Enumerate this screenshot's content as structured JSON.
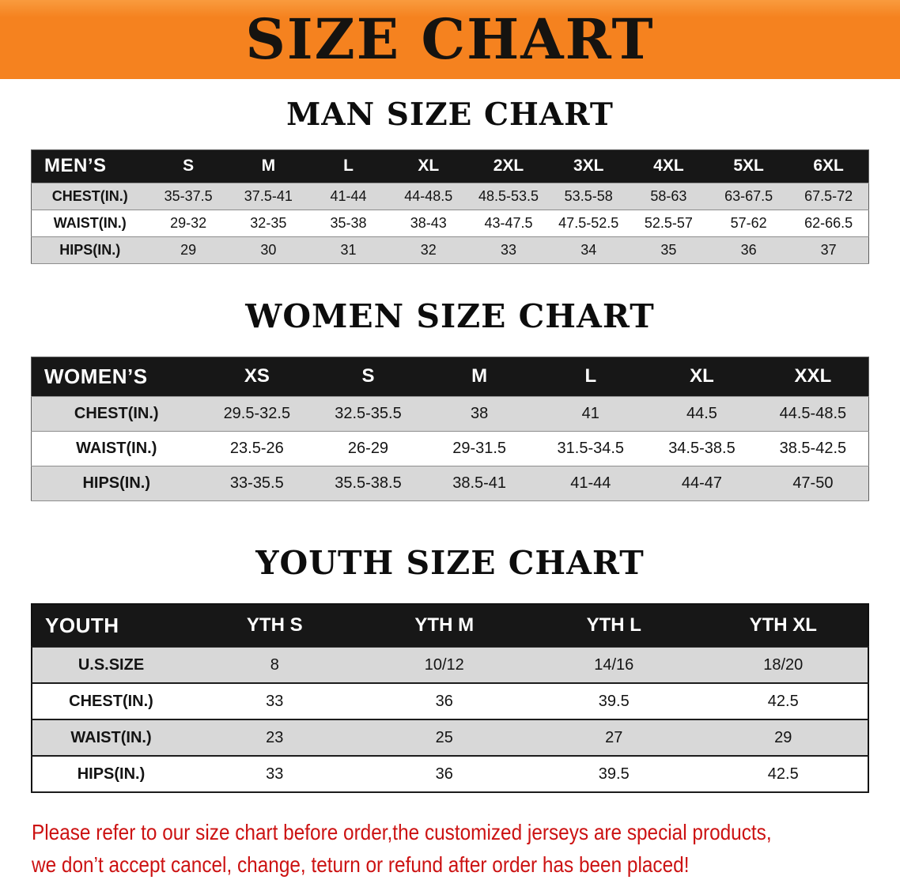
{
  "banner": {
    "title": "SIZE CHART"
  },
  "men": {
    "heading": "MAN SIZE CHART",
    "header": [
      "MEN’S",
      "S",
      "M",
      "L",
      "XL",
      "2XL",
      "3XL",
      "4XL",
      "5XL",
      "6XL"
    ],
    "rows": [
      [
        "CHEST(IN.)",
        "35-37.5",
        "37.5-41",
        "41-44",
        "44-48.5",
        "48.5-53.5",
        "53.5-58",
        "58-63",
        "63-67.5",
        "67.5-72"
      ],
      [
        "WAIST(IN.)",
        "29-32",
        "32-35",
        "35-38",
        "38-43",
        "43-47.5",
        "47.5-52.5",
        "52.5-57",
        "57-62",
        "62-66.5"
      ],
      [
        "HIPS(IN.)",
        "29",
        "30",
        "31",
        "32",
        "33",
        "34",
        "35",
        "36",
        "37"
      ]
    ]
  },
  "women": {
    "heading": "WOMEN SIZE CHART",
    "header": [
      "WOMEN’S",
      "XS",
      "S",
      "M",
      "L",
      "XL",
      "XXL"
    ],
    "rows": [
      [
        "CHEST(IN.)",
        "29.5-32.5",
        "32.5-35.5",
        "38",
        "41",
        "44.5",
        "44.5-48.5"
      ],
      [
        "WAIST(IN.)",
        "23.5-26",
        "26-29",
        "29-31.5",
        "31.5-34.5",
        "34.5-38.5",
        "38.5-42.5"
      ],
      [
        "HIPS(IN.)",
        "33-35.5",
        "35.5-38.5",
        "38.5-41",
        "41-44",
        "44-47",
        "47-50"
      ]
    ]
  },
  "youth": {
    "heading": "YOUTH SIZE CHART",
    "header": [
      "YOUTH",
      "YTH S",
      "YTH M",
      "YTH L",
      "YTH XL"
    ],
    "rows": [
      [
        "U.S.SIZE",
        "8",
        "10/12",
        "14/16",
        "18/20"
      ],
      [
        "CHEST(IN.)",
        "33",
        "36",
        "39.5",
        "42.5"
      ],
      [
        "WAIST(IN.)",
        "23",
        "25",
        "27",
        "29"
      ],
      [
        "HIPS(IN.)",
        "33",
        "36",
        "39.5",
        "42.5"
      ]
    ]
  },
  "disclaimer": {
    "line1": "Please refer to our size chart before order,the customized jerseys are special products,",
    "line2": "we don’t accept cancel, change, teturn or refund after order has been placed!"
  },
  "colors": {
    "banner_orange": "#f5821f",
    "table_header_black": "#171717",
    "row_stripe_gray": "#d8d8d8",
    "disclaimer_red": "#cc1212"
  }
}
